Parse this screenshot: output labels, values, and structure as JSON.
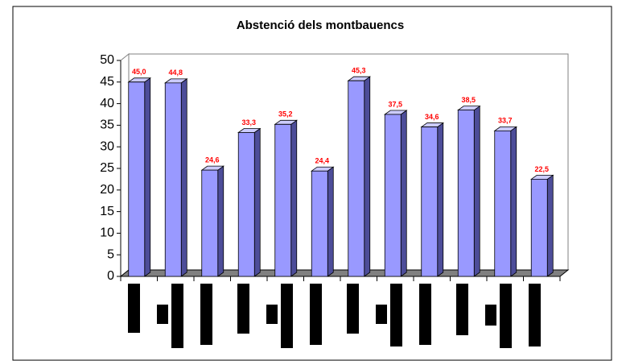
{
  "chart_data": {
    "type": "bar",
    "title": "Abstenció dels montbauencs",
    "categories": [
      null,
      null,
      null,
      null,
      null,
      null,
      null,
      null,
      null,
      null,
      null,
      null
    ],
    "values": [
      45.0,
      44.8,
      24.6,
      33.3,
      35.2,
      24.4,
      45.3,
      37.5,
      34.6,
      38.5,
      33.7,
      22.5
    ],
    "value_labels": [
      "45,0",
      "44,8",
      "24,6",
      "33,3",
      "35,2",
      "24,4",
      "45,3",
      "37,5",
      "34,6",
      "38,5",
      "33,7",
      "22,5"
    ],
    "color": "#9999ff",
    "label_color": "#ff0000",
    "ylim": [
      0,
      50
    ],
    "yticks": [
      0,
      5,
      10,
      15,
      20,
      25,
      30,
      35,
      40,
      45,
      50
    ],
    "grid": false
  }
}
